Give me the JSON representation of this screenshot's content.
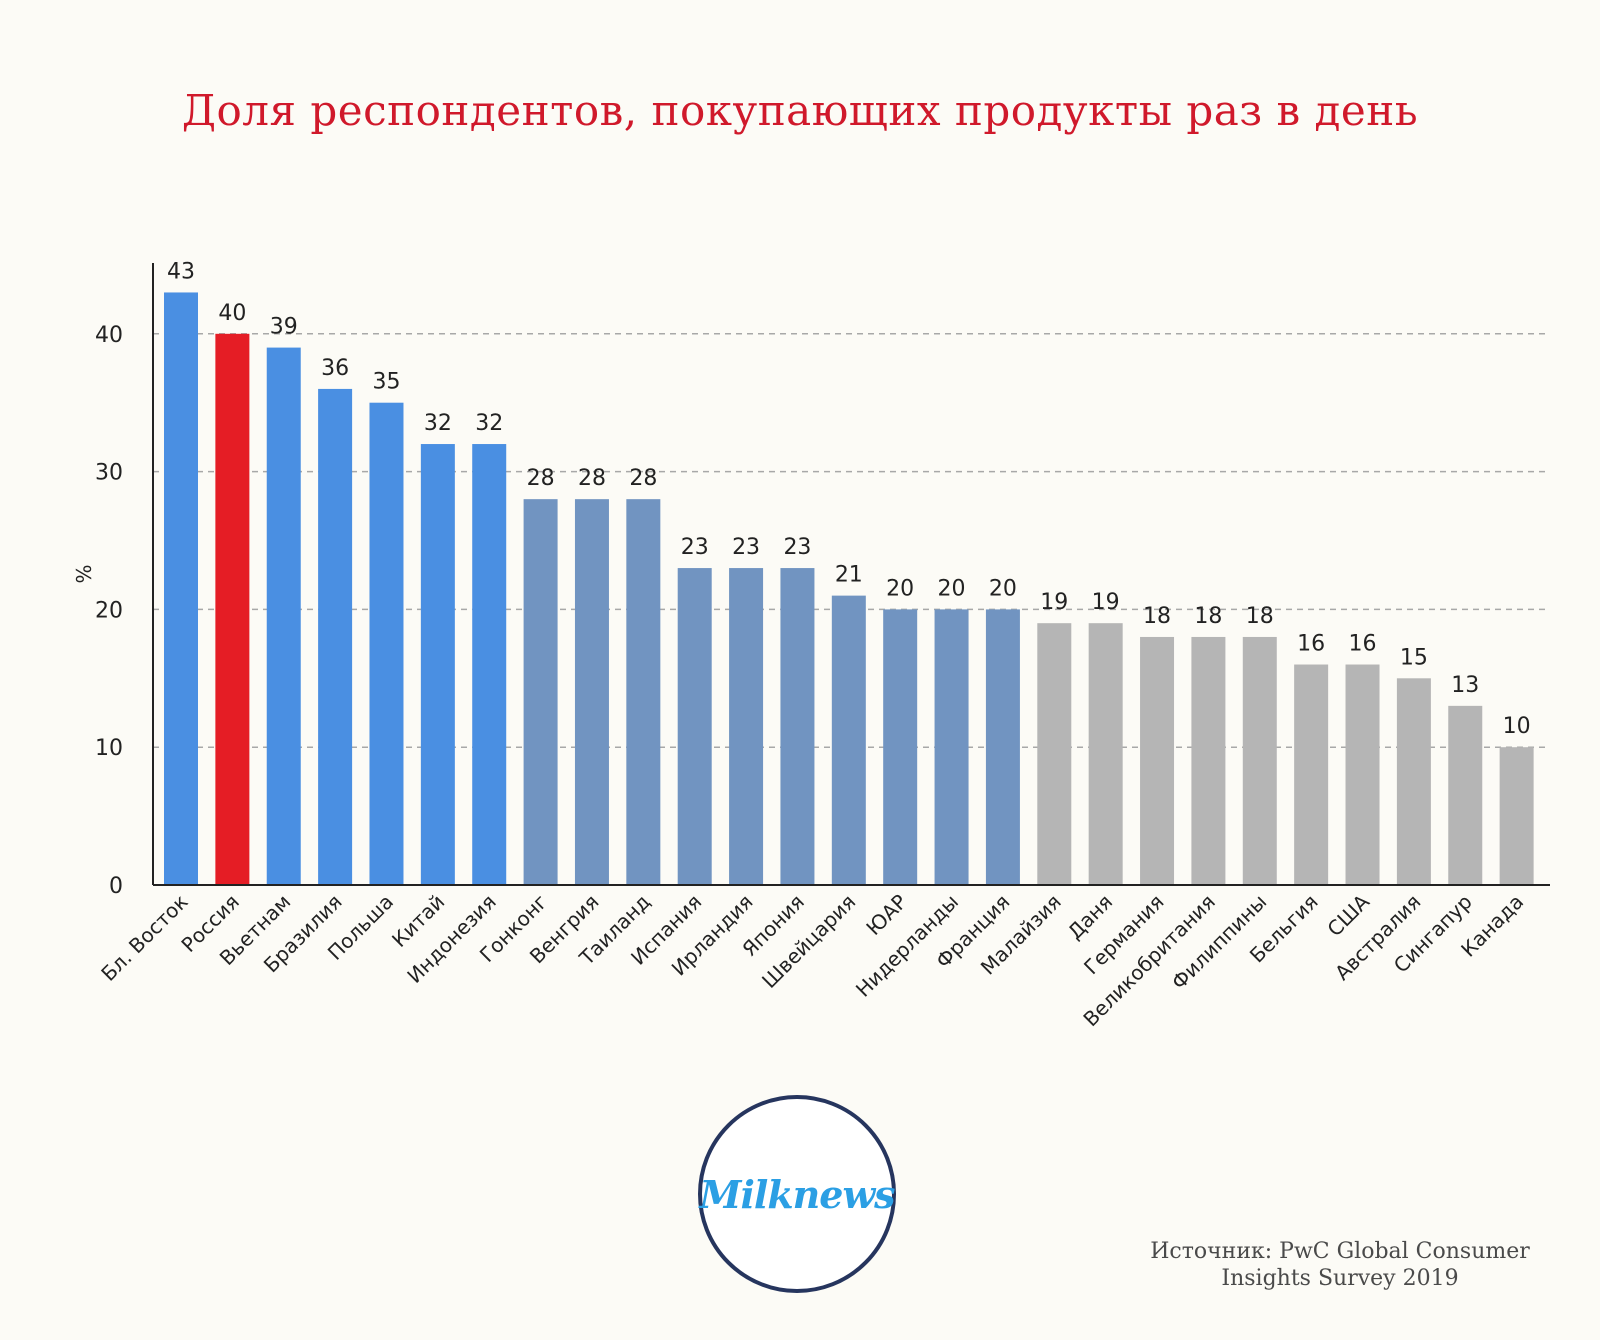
{
  "title": "Доля респондентов, покупающих продукты раз в день",
  "source": {
    "line1": "Источник: PwC Global Consumer",
    "line2": "Insights Survey 2019"
  },
  "logo": {
    "text": "Milknews"
  },
  "chart_data": {
    "type": "bar",
    "ylabel": "%",
    "ylim": [
      0,
      44
    ],
    "yticks": [
      0,
      10,
      20,
      30,
      40
    ],
    "grid": "horizontal dashed",
    "categories": [
      "Бл. Восток",
      "Россия",
      "Вьетнам",
      "Бразилия",
      "Польша",
      "Китай",
      "Индонезия",
      "Гонконг",
      "Венгрия",
      "Таиланд",
      "Испания",
      "Ирландия",
      "Япония",
      "Швейцария",
      "ЮАР",
      "Нидерланды",
      "Франция",
      "Малайзия",
      "Даня",
      "Германия",
      "Великобритания",
      "Филиппины",
      "Бельгия",
      "США",
      "Австралия",
      "Сингапур",
      "Канада"
    ],
    "values": [
      43,
      40,
      39,
      36,
      35,
      32,
      32,
      28,
      28,
      28,
      23,
      23,
      23,
      21,
      20,
      20,
      20,
      19,
      19,
      18,
      18,
      18,
      16,
      16,
      15,
      13,
      10
    ],
    "colors": [
      "#4a8fe2",
      "#e51d25",
      "#4a8fe2",
      "#4a8fe2",
      "#4a8fe2",
      "#4a8fe2",
      "#4a8fe2",
      "#7194c1",
      "#7194c1",
      "#7194c1",
      "#7194c1",
      "#7194c1",
      "#7194c1",
      "#7194c1",
      "#7194c1",
      "#7194c1",
      "#7194c1",
      "#b5b5b5",
      "#b5b5b5",
      "#b5b5b5",
      "#b5b5b5",
      "#b5b5b5",
      "#b5b5b5",
      "#b5b5b5",
      "#b5b5b5",
      "#b5b5b5",
      "#b5b5b5"
    ]
  }
}
